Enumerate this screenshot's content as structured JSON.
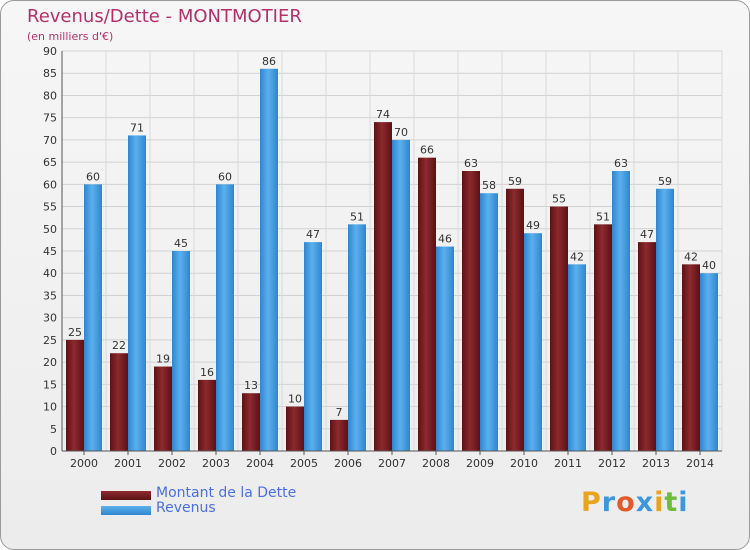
{
  "chart_data": {
    "type": "bar",
    "title": "Revenus/Dette - MONTMOTIER",
    "subtitle": "(en milliers d'€)",
    "categories": [
      "2000",
      "2001",
      "2002",
      "2003",
      "2004",
      "2005",
      "2006",
      "2007",
      "2008",
      "2009",
      "2010",
      "2011",
      "2012",
      "2013",
      "2014"
    ],
    "series": [
      {
        "name": "Montant de la Dette",
        "color": "#7a1f22",
        "values": [
          25,
          22,
          19,
          16,
          13,
          10,
          7,
          74,
          66,
          63,
          59,
          55,
          51,
          47,
          42
        ]
      },
      {
        "name": "Revenus",
        "color": "#3d97de",
        "values": [
          60,
          71,
          45,
          60,
          86,
          47,
          51,
          70,
          46,
          58,
          49,
          42,
          63,
          59,
          40
        ]
      }
    ],
    "ylim": [
      0,
      90
    ],
    "ytick_step": 5,
    "grid": true,
    "legend_position": "bottom-left"
  },
  "logo": {
    "text": "Proxiti",
    "colors": [
      "#e8a320",
      "#3d97de",
      "#e05a2a",
      "#3d97de",
      "#e8a320",
      "#6bbd3a",
      "#3d97de"
    ]
  }
}
